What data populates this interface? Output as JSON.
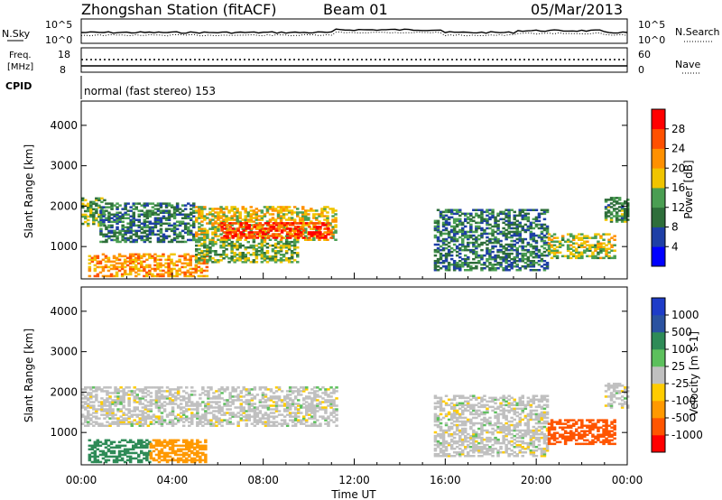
{
  "header": {
    "station": "Zhongshan Station (fitACF)",
    "beam": "Beam 01",
    "date": "05/Mar/2013"
  },
  "noise_panel": {
    "left_label": "N.Sky",
    "left_ticks": [
      "10^5",
      "10^0"
    ],
    "right_label": "N.Search",
    "right_ticks": [
      "10^5",
      "10^0"
    ]
  },
  "freq_panel": {
    "left_label_1": "Freq.",
    "left_label_2": "[MHz]",
    "left_ticks": [
      "18",
      "8"
    ],
    "right_label": "Nave",
    "right_ticks": [
      "60",
      "0"
    ]
  },
  "cpid_panel": {
    "label": "CPID",
    "text": "normal (fast stereo) 153"
  },
  "colors": {
    "power_scale": [
      "#0000ff",
      "#1e3fa6",
      "#2e6e3a",
      "#4a9e52",
      "#f0c400",
      "#ff9000",
      "#ff5000",
      "#ff0000"
    ],
    "velocity_scale": [
      "#ff0000",
      "#ff5500",
      "#ff9900",
      "#ffcc00",
      "#c0c0c0",
      "#5cc05c",
      "#2e8b57",
      "#2a52a0",
      "#1e3cc8"
    ]
  },
  "chart_data": [
    {
      "type": "heatmap",
      "quantity": "Power",
      "xlabel": "",
      "ylabel": "Slant Range [km]",
      "y_ticks": [
        "1000",
        "2000",
        "3000",
        "4000"
      ],
      "ylim": [
        200,
        4600
      ],
      "xlim": [
        0,
        24
      ],
      "x_tick_labels": [
        "00:00",
        "04:00",
        "08:00",
        "12:00",
        "16:00",
        "20:00",
        "00:00"
      ],
      "colorbar": {
        "label": "Power [dB]",
        "ticks": [
          "4",
          "8",
          "12",
          "16",
          "20",
          "24",
          "28"
        ],
        "range": [
          0,
          32
        ]
      },
      "echo_regions": [
        {
          "t0": 0.0,
          "t1": 1.0,
          "r0": 1500,
          "r1": 2200,
          "value": 14
        },
        {
          "t0": 0.8,
          "t1": 5.0,
          "r0": 1100,
          "r1": 2050,
          "value": 10
        },
        {
          "t0": 5.0,
          "t1": 11.2,
          "r0": 1150,
          "r1": 2000,
          "value": 18
        },
        {
          "t0": 6.0,
          "t1": 11.0,
          "r0": 1200,
          "r1": 1600,
          "value": 28
        },
        {
          "t0": 0.3,
          "t1": 5.5,
          "r0": 250,
          "r1": 800,
          "value": 22
        },
        {
          "t0": 5.0,
          "t1": 9.5,
          "r0": 600,
          "r1": 1100,
          "value": 14
        },
        {
          "t0": 15.5,
          "t1": 20.5,
          "r0": 400,
          "r1": 1900,
          "value": 10
        },
        {
          "t0": 20.5,
          "t1": 23.5,
          "r0": 700,
          "r1": 1300,
          "value": 16
        },
        {
          "t0": 23.0,
          "t1": 24.0,
          "r0": 1600,
          "r1": 2200,
          "value": 12
        }
      ]
    },
    {
      "type": "heatmap",
      "quantity": "Velocity",
      "xlabel": "Time UT",
      "ylabel": "Slant Range [km]",
      "y_ticks": [
        "1000",
        "2000",
        "3000",
        "4000"
      ],
      "ylim": [
        200,
        4600
      ],
      "xlim": [
        0,
        24
      ],
      "x_tick_labels": [
        "00:00",
        "04:00",
        "08:00",
        "12:00",
        "16:00",
        "20:00",
        "00:00"
      ],
      "colorbar": {
        "label": "Velocity [m s-1]",
        "ticks": [
          "-1000",
          "-500",
          "-100",
          "-25",
          "25",
          "100",
          "500",
          "1000"
        ]
      },
      "echo_regions": [
        {
          "t0": 0.0,
          "t1": 11.2,
          "r0": 1150,
          "r1": 2100,
          "value": 0
        },
        {
          "t0": 0.3,
          "t1": 3.0,
          "r0": 250,
          "r1": 800,
          "value": 300
        },
        {
          "t0": 3.0,
          "t1": 5.5,
          "r0": 250,
          "r1": 800,
          "value": -300
        },
        {
          "t0": 15.5,
          "t1": 20.5,
          "r0": 400,
          "r1": 1900,
          "value": 0
        },
        {
          "t0": 20.5,
          "t1": 23.5,
          "r0": 700,
          "r1": 1300,
          "value": -600
        },
        {
          "t0": 23.0,
          "t1": 24.0,
          "r0": 1600,
          "r1": 2200,
          "value": 0
        }
      ]
    }
  ]
}
